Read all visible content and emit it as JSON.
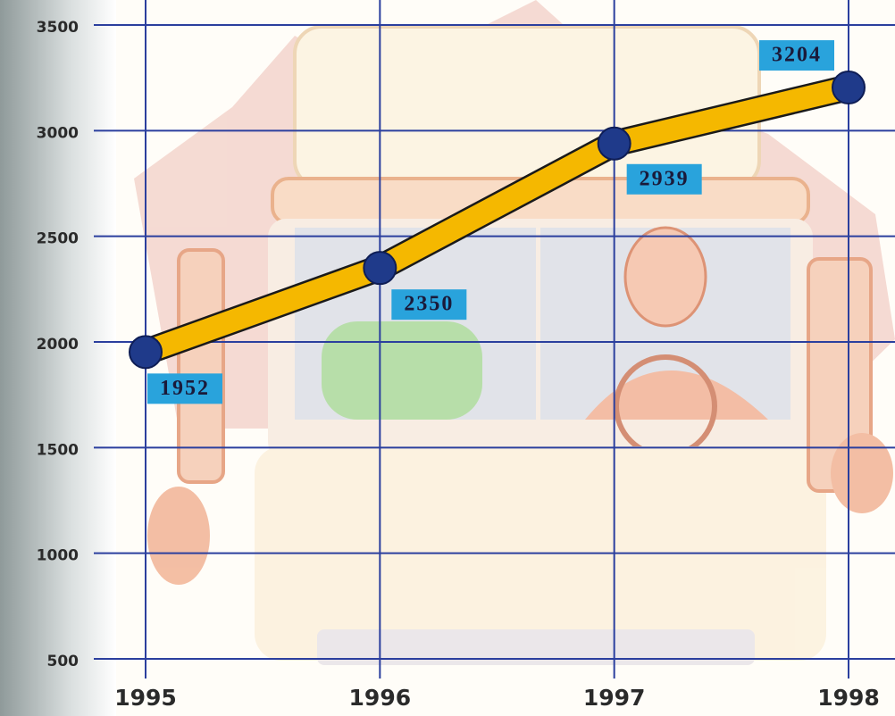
{
  "chart_data": {
    "type": "line",
    "x": [
      1995,
      1996,
      1997,
      1998
    ],
    "series": [
      {
        "color": "#f5b800",
        "marker_color": "#1f3a8a",
        "label_color": "#29a3dc",
        "values": [
          1952,
          2350,
          2939,
          3204
        ]
      }
    ],
    "xlim": [
      1995,
      1998
    ],
    "xticks": [
      1995,
      1996,
      1997,
      1998
    ],
    "ylim": [
      500,
      3500
    ],
    "yticks": [
      500,
      1000,
      1500,
      2000,
      2500,
      3000,
      3500
    ],
    "grid": true,
    "grid_color": "#2b3f9e"
  }
}
